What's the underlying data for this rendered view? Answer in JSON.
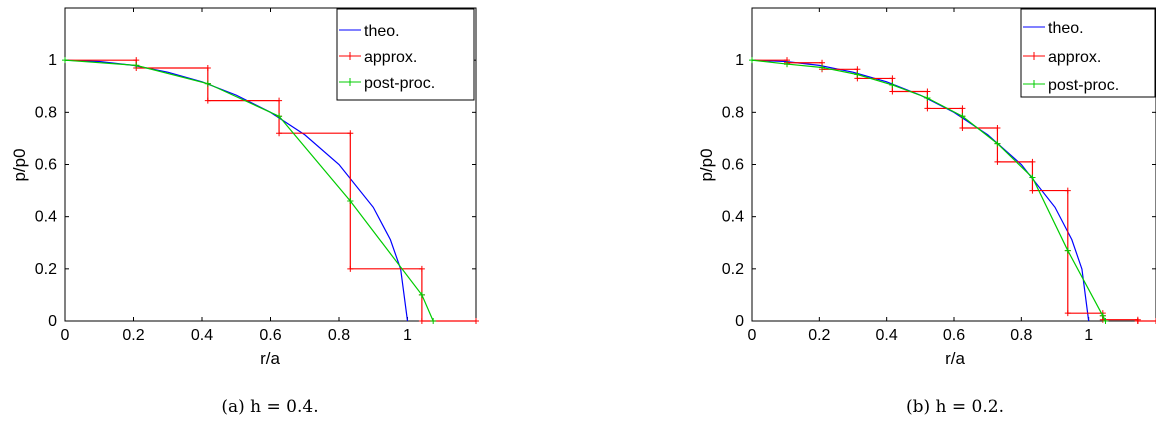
{
  "chart_data": [
    {
      "type": "line",
      "caption": "(a)  h = 0.4.",
      "xlabel": "r/a",
      "ylabel": "p/p0",
      "xlim": [
        0,
        1.2
      ],
      "ylim": [
        0,
        1.2
      ],
      "xticks": [
        0,
        0.2,
        0.4,
        0.6,
        0.8,
        1
      ],
      "xtick_labels": [
        "0",
        "0.2",
        "0.4",
        "0.6",
        "0.8",
        "1"
      ],
      "yticks": [
        0,
        0.2,
        0.4,
        0.6,
        0.8,
        1
      ],
      "ytick_labels": [
        "0",
        "0.2",
        "0.4",
        "0.6",
        "0.8",
        "1"
      ],
      "grid": false,
      "legend_position": "top-right",
      "series": [
        {
          "name": "theo.",
          "color": "#0000ff",
          "style": "curve",
          "x": [
            0,
            0.1,
            0.2,
            0.3,
            0.4,
            0.5,
            0.6,
            0.7,
            0.8,
            0.9,
            0.95,
            0.98,
            1.0
          ],
          "y": [
            1,
            0.995,
            0.98,
            0.954,
            0.917,
            0.866,
            0.8,
            0.714,
            0.6,
            0.436,
            0.312,
            0.199,
            0
          ]
        },
        {
          "name": "approx.",
          "color": "#ff0000",
          "style": "step",
          "x": [
            0,
            0.208,
            0.208,
            0.417,
            0.417,
            0.625,
            0.625,
            0.833,
            0.833,
            1.042,
            1.042,
            1.2
          ],
          "y": [
            1,
            1,
            0.97,
            0.97,
            0.845,
            0.845,
            0.72,
            0.72,
            0.2,
            0.2,
            0,
            0
          ],
          "markers_x": [
            0.208,
            0.417,
            0.625,
            0.833,
            1.042,
            1.2
          ],
          "markers_y": [
            0.98,
            0.91,
            0.785,
            0.46,
            0.1,
            0
          ]
        },
        {
          "name": "post-proc.",
          "color": "#00cc00",
          "style": "line",
          "x": [
            0,
            0.208,
            0.417,
            0.625,
            0.833,
            1.042,
            1.075
          ],
          "y": [
            1,
            0.98,
            0.91,
            0.785,
            0.46,
            0.1,
            0
          ]
        }
      ]
    },
    {
      "type": "line",
      "caption": "(b)  h = 0.2.",
      "xlabel": "r/a",
      "ylabel": "p/p0",
      "xlim": [
        0,
        1.2
      ],
      "ylim": [
        0,
        1.2
      ],
      "xticks": [
        0,
        0.2,
        0.4,
        0.6,
        0.8,
        1
      ],
      "xtick_labels": [
        "0",
        "0.2",
        "0.4",
        "0.6",
        "0.8",
        "1"
      ],
      "yticks": [
        0,
        0.2,
        0.4,
        0.6,
        0.8,
        1
      ],
      "ytick_labels": [
        "0",
        "0.2",
        "0.4",
        "0.6",
        "0.8",
        "1"
      ],
      "grid": false,
      "legend_position": "top-right",
      "series": [
        {
          "name": "theo.",
          "color": "#0000ff",
          "style": "curve",
          "x": [
            0,
            0.1,
            0.2,
            0.3,
            0.4,
            0.5,
            0.6,
            0.7,
            0.8,
            0.9,
            0.95,
            0.98,
            1.0
          ],
          "y": [
            1,
            0.995,
            0.98,
            0.954,
            0.917,
            0.866,
            0.8,
            0.714,
            0.6,
            0.436,
            0.312,
            0.199,
            0
          ]
        },
        {
          "name": "approx.",
          "color": "#ff0000",
          "style": "step",
          "x": [
            0,
            0.104,
            0.104,
            0.208,
            0.208,
            0.313,
            0.313,
            0.417,
            0.417,
            0.521,
            0.521,
            0.625,
            0.625,
            0.729,
            0.729,
            0.833,
            0.833,
            0.938,
            0.938,
            1.042,
            1.042,
            1.146,
            1.146,
            1.2
          ],
          "y": [
            1,
            1,
            0.99,
            0.99,
            0.965,
            0.965,
            0.93,
            0.93,
            0.88,
            0.88,
            0.815,
            0.815,
            0.74,
            0.74,
            0.61,
            0.61,
            0.5,
            0.5,
            0.03,
            0.03,
            0.005,
            0.005,
            0,
            0
          ],
          "markers_x": [
            0.104,
            0.208,
            0.313,
            0.417,
            0.521,
            0.625,
            0.729,
            0.833,
            0.938,
            1.042,
            1.146
          ],
          "markers_y": [
            0.985,
            0.972,
            0.945,
            0.905,
            0.855,
            0.785,
            0.68,
            0.55,
            0.27,
            0.02,
            0
          ]
        },
        {
          "name": "post-proc.",
          "color": "#00cc00",
          "style": "line",
          "x": [
            0,
            0.104,
            0.208,
            0.313,
            0.417,
            0.521,
            0.625,
            0.729,
            0.833,
            0.938,
            1.042,
            1.05
          ],
          "y": [
            1,
            0.985,
            0.972,
            0.945,
            0.905,
            0.855,
            0.785,
            0.68,
            0.55,
            0.27,
            0.02,
            0
          ]
        }
      ]
    }
  ]
}
